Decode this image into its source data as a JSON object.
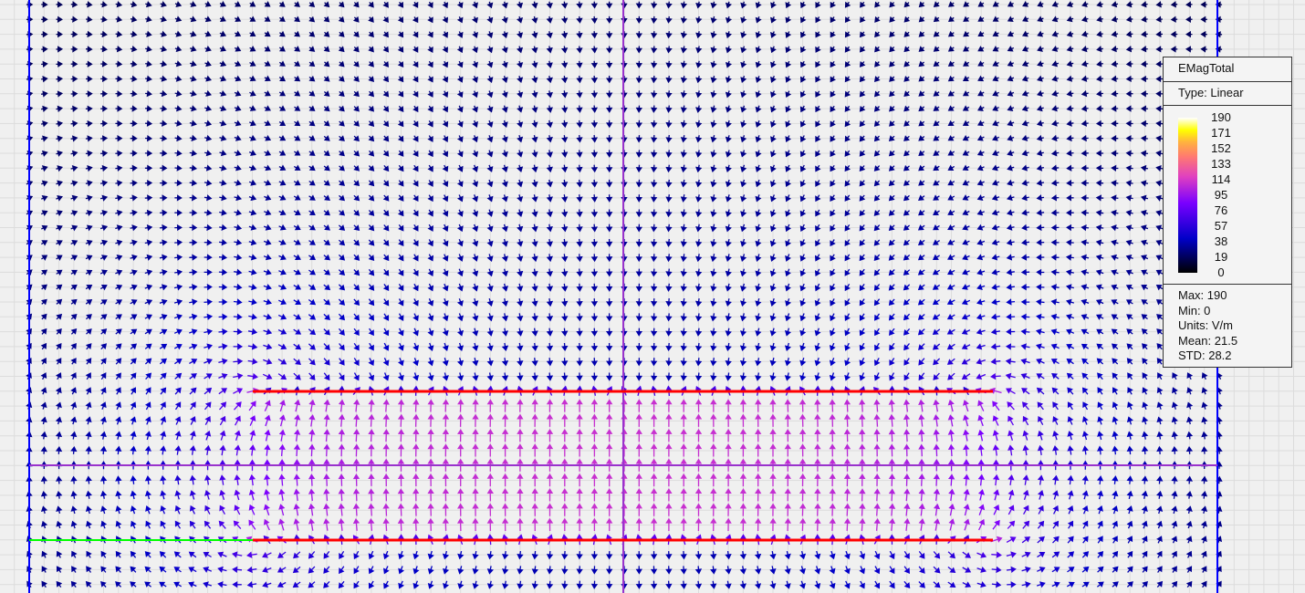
{
  "legend": {
    "title": "EMagTotal",
    "type": "Type: Linear",
    "ticks": [
      "190",
      "171",
      "152",
      "133",
      "114",
      "95",
      "76",
      "57",
      "38",
      "19",
      "0"
    ],
    "max": "Max: 190",
    "min": "Min: 0",
    "units": "Units: V/m",
    "mean": "Mean: 21.5",
    "std": "STD: 28.2",
    "colormap": [
      "#000000",
      "#0000c8",
      "#7a00ff",
      "#e040c0",
      "#ff7a70",
      "#ffb040",
      "#ffff00",
      "#ffffff"
    ]
  },
  "colors": {
    "background": "#f0f0f0",
    "grid": "#dcdcdc",
    "plate": "#ff0000",
    "boundary": "#0000ff",
    "symmetry": "#9933cc",
    "port": "#00ff00"
  },
  "field": {
    "max": 190,
    "min": 0,
    "interior_level": 110
  }
}
